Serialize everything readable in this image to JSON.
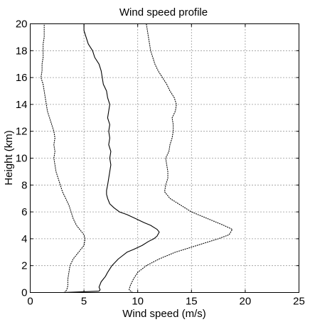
{
  "chart_data": {
    "type": "line",
    "title": "Wind speed profile",
    "xlabel": "Wind speed (m/s)",
    "ylabel": "Height (km)",
    "xlim": [
      0,
      25
    ],
    "ylim": [
      0,
      20
    ],
    "xticks": [
      0,
      5,
      10,
      15,
      20,
      25
    ],
    "yticks": [
      0,
      2,
      4,
      6,
      8,
      10,
      12,
      14,
      16,
      18,
      20
    ],
    "grid": true,
    "legend": "none",
    "series": [
      {
        "style": "solid",
        "color": "#000000",
        "y": [
          0,
          0.1,
          0.2,
          0.4,
          0.6,
          0.8,
          1.0,
          1.2,
          1.5,
          2.0,
          2.5,
          3.0,
          3.2,
          3.5,
          3.8,
          4.0,
          4.2,
          4.5,
          4.7,
          4.8,
          5.0,
          5.2,
          5.5,
          5.8,
          6.0,
          6.3,
          6.6,
          7.0,
          7.3,
          7.6,
          8.0,
          8.5,
          9.0,
          9.5,
          10.0,
          10.5,
          11.0,
          11.5,
          12.0,
          12.5,
          13.0,
          13.5,
          14.0,
          14.5,
          15.0,
          15.5,
          16.0,
          16.5,
          17.0,
          17.5,
          18.0,
          18.5,
          19.0,
          19.5,
          20.0
        ],
        "x": [
          3.0,
          6.4,
          6.5,
          6.4,
          6.5,
          6.6,
          6.8,
          7.0,
          7.2,
          7.6,
          8.2,
          9.0,
          9.6,
          10.4,
          11.0,
          11.5,
          11.8,
          12.0,
          11.8,
          11.6,
          11.2,
          10.6,
          9.8,
          9.0,
          8.3,
          7.8,
          7.4,
          7.2,
          7.1,
          7.1,
          7.2,
          7.3,
          7.4,
          7.5,
          7.4,
          7.5,
          7.3,
          7.4,
          7.3,
          7.4,
          7.2,
          7.3,
          7.4,
          7.2,
          7.1,
          6.8,
          6.7,
          6.6,
          6.4,
          6.0,
          5.8,
          5.4,
          5.2,
          5.0,
          5.0
        ]
      },
      {
        "style": "dotted",
        "color": "#000000",
        "y": [
          0,
          0.2,
          0.5,
          1.0,
          1.5,
          2.0,
          2.5,
          3.0,
          3.5,
          4.0,
          4.3,
          4.6,
          5.0,
          5.5,
          6.0,
          6.5,
          7.0,
          7.5,
          8.0,
          8.5,
          9.0,
          9.5,
          10.0,
          10.5,
          11.0,
          11.5,
          12.0,
          12.5,
          13.0,
          13.5,
          14.0,
          14.5,
          15.0,
          15.5,
          16.0,
          16.5,
          17.0,
          17.5,
          18.0,
          18.5,
          19.0,
          19.5,
          20.0
        ],
        "x": [
          3.2,
          3.4,
          3.5,
          3.5,
          3.6,
          3.7,
          4.0,
          4.5,
          5.0,
          5.1,
          5.0,
          4.7,
          4.3,
          4.0,
          3.8,
          3.6,
          3.3,
          3.0,
          2.8,
          2.6,
          2.4,
          2.3,
          2.2,
          2.3,
          2.2,
          2.3,
          2.2,
          2.0,
          1.8,
          1.6,
          1.5,
          1.4,
          1.3,
          1.2,
          1.0,
          1.1,
          1.1,
          1.2,
          1.2,
          1.2,
          1.3,
          1.3,
          1.3
        ]
      },
      {
        "style": "dotted",
        "color": "#000000",
        "y": [
          0,
          0.2,
          0.5,
          1.0,
          1.5,
          2.0,
          2.5,
          3.0,
          3.5,
          4.0,
          4.3,
          4.7,
          5.0,
          5.5,
          6.0,
          6.5,
          7.0,
          7.5,
          8.0,
          8.5,
          9.0,
          9.5,
          10.0,
          10.5,
          11.0,
          11.5,
          12.0,
          12.5,
          13.0,
          13.5,
          14.0,
          14.5,
          15.0,
          15.5,
          16.0,
          16.5,
          17.0,
          17.5,
          18.0,
          18.5,
          19.0,
          19.5,
          20.0
        ],
        "x": [
          9.5,
          9.2,
          9.3,
          9.6,
          10.0,
          10.8,
          12.0,
          13.5,
          15.5,
          17.5,
          18.5,
          18.8,
          18.0,
          16.5,
          15.0,
          14.0,
          13.0,
          12.5,
          12.6,
          12.8,
          12.8,
          12.7,
          12.6,
          12.9,
          13.0,
          13.2,
          13.3,
          13.3,
          13.2,
          13.5,
          13.6,
          13.4,
          13.0,
          12.7,
          12.3,
          11.9,
          11.6,
          11.4,
          11.2,
          11.1,
          11.0,
          10.9,
          10.8
        ]
      }
    ]
  }
}
